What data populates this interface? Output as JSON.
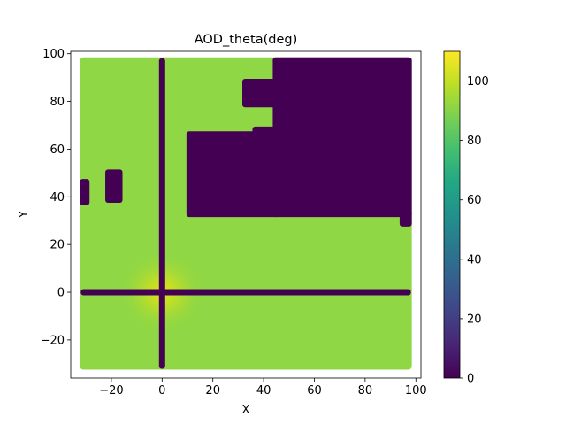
{
  "chart_data": {
    "type": "scatter",
    "title": "AOD_theta(deg)",
    "xlabel": "X",
    "ylabel": "Y",
    "xlim": [
      -36,
      102
    ],
    "ylim": [
      -36,
      101
    ],
    "xticks": [
      -20,
      0,
      20,
      40,
      60,
      80,
      100
    ],
    "yticks": [
      -20,
      0,
      20,
      40,
      60,
      80,
      100
    ],
    "grid": false,
    "colormap": "viridis",
    "colorbar": {
      "range": [
        0,
        110
      ],
      "ticks": [
        0,
        20,
        40,
        60,
        80,
        100
      ]
    },
    "field": {
      "x_range": [
        -31,
        97
      ],
      "y_range": [
        -31,
        97
      ],
      "base_value": 88,
      "peak": {
        "x": 0,
        "y": 0,
        "value": 100
      },
      "dark_value": 0
    },
    "dark_regions": [
      {
        "x": [
          45,
          97
        ],
        "y": [
          33,
          97
        ]
      },
      {
        "x": [
          33,
          45
        ],
        "y": [
          79,
          88
        ]
      },
      {
        "x": [
          11,
          45
        ],
        "y": [
          33,
          66
        ]
      },
      {
        "x": [
          37,
          45
        ],
        "y": [
          66,
          68
        ]
      },
      {
        "x": [
          95,
          97
        ],
        "y": [
          29,
          33
        ]
      },
      {
        "x": [
          -21,
          -17
        ],
        "y": [
          39,
          50
        ]
      },
      {
        "x": [
          -31,
          -30
        ],
        "y": [
          38,
          46
        ]
      }
    ],
    "dark_lines": [
      {
        "orientation": "vertical",
        "x": 0,
        "y": [
          -31,
          97
        ]
      },
      {
        "orientation": "horizontal",
        "y": 0,
        "x": [
          -31,
          97
        ]
      }
    ]
  }
}
